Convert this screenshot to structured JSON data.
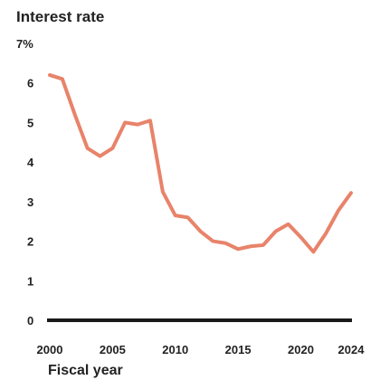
{
  "chart_data": {
    "type": "line",
    "title": "Interest rate",
    "xlabel": "Fiscal year",
    "ylabel": "",
    "unit": "%",
    "xlim": [
      2000,
      2024
    ],
    "ylim": [
      0,
      7
    ],
    "x_ticks": [
      2000,
      2005,
      2010,
      2015,
      2020,
      2024
    ],
    "y_ticks": [
      0,
      1,
      2,
      3,
      4,
      5,
      6,
      7
    ],
    "y_tick_labels": [
      "0",
      "1",
      "2",
      "3",
      "4",
      "5",
      "6",
      "7%"
    ],
    "grid": false,
    "legend": "none",
    "colors": {
      "series": "#e8836a",
      "zero_line": "#1a1a1a",
      "text": "#222222"
    },
    "series": [
      {
        "x": [
          2000,
          2001,
          2002,
          2003,
          2004,
          2005,
          2006,
          2007,
          2008,
          2009,
          2010,
          2011,
          2012,
          2013,
          2014,
          2015,
          2016,
          2017,
          2018,
          2019,
          2020,
          2021,
          2022,
          2023,
          2024
        ],
        "values": [
          6.2,
          6.1,
          5.2,
          4.35,
          4.15,
          4.35,
          5.0,
          4.95,
          5.05,
          3.25,
          2.65,
          2.6,
          2.25,
          2.0,
          1.95,
          1.8,
          1.87,
          1.9,
          2.25,
          2.43,
          2.1,
          1.73,
          2.2,
          2.78,
          3.22
        ]
      }
    ]
  }
}
